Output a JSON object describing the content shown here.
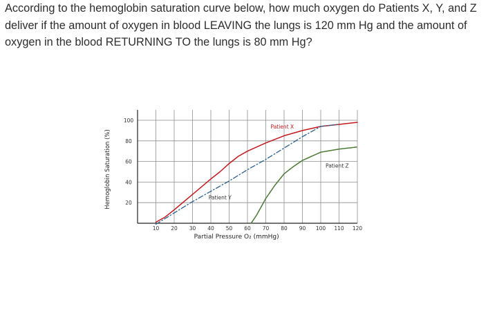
{
  "question": {
    "text": "According to the hemoglobin saturation curve below, how much oxygen do Patients X, Y, and Z deliver if the amount of oxygen in blood LEAVING the lungs is 120 mm Hg and the amount of oxygen in the blood RETURNING TO the lungs is 80 mm Hg?"
  },
  "chart_data": {
    "type": "line",
    "title": "",
    "xlabel": "Partial Pressure O₂ (mmHg)",
    "ylabel": "Hemoglobin Saturation (%)",
    "xlim": [
      0,
      120
    ],
    "ylim": [
      0,
      100
    ],
    "x_ticks": [
      10,
      20,
      30,
      40,
      50,
      60,
      70,
      80,
      90,
      100,
      110,
      120
    ],
    "y_ticks": [
      20,
      40,
      60,
      80,
      100
    ],
    "grid": true,
    "legend": "none (inline labels)",
    "series": [
      {
        "name": "Patient X",
        "color": "#c0181c",
        "style": "solid",
        "x": [
          10,
          15,
          20,
          30,
          40,
          45,
          50,
          55,
          60,
          70,
          80,
          90,
          100,
          110,
          120
        ],
        "y": [
          1,
          6,
          13,
          28,
          43,
          50,
          58,
          65,
          70,
          78,
          85,
          90,
          94,
          96,
          98
        ]
      },
      {
        "name": "Patient Y",
        "color": "#2a5f8f",
        "style": "dashdot",
        "x": [
          10,
          20,
          30,
          40,
          50,
          60,
          70,
          80,
          90,
          100,
          110
        ],
        "y": [
          -1,
          10,
          21,
          31,
          41,
          52,
          62,
          73,
          84,
          94,
          96
        ]
      },
      {
        "name": "Patient Z",
        "color": "#4a7a36",
        "style": "dotted",
        "x": [
          62,
          65,
          70,
          75,
          80,
          85,
          90,
          100,
          110,
          120
        ],
        "y": [
          0,
          8,
          24,
          37,
          48,
          55,
          61,
          69,
          72,
          74
        ]
      }
    ],
    "annotations": [
      {
        "text": "Patient X",
        "x": 79,
        "y": 92
      },
      {
        "text": "Patient Y",
        "x": 45,
        "y": 23
      },
      {
        "text": "Patient Z",
        "x": 109,
        "y": 54
      }
    ]
  }
}
